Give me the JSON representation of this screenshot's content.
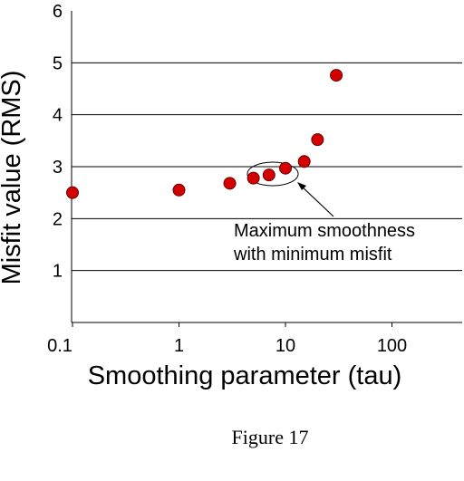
{
  "chart_data": {
    "type": "scatter",
    "x_scale": "log",
    "xlabel": "Smoothing parameter (tau)",
    "ylabel": "Misfit value (RMS)",
    "xlim": [
      0.08,
      500
    ],
    "ylim": [
      0,
      6
    ],
    "x_ticks": [
      "0.1",
      "1",
      "10",
      "100"
    ],
    "y_ticks": [
      "1",
      "2",
      "3",
      "4",
      "5",
      "6"
    ],
    "grid": "horizontal",
    "marker_color": "#d40000",
    "points": [
      {
        "x": 0.1,
        "y": 2.5
      },
      {
        "x": 1,
        "y": 2.55
      },
      {
        "x": 3,
        "y": 2.68
      },
      {
        "x": 5,
        "y": 2.78
      },
      {
        "x": 7,
        "y": 2.84
      },
      {
        "x": 10,
        "y": 2.97
      },
      {
        "x": 15,
        "y": 3.1
      },
      {
        "x": 20,
        "y": 3.52
      },
      {
        "x": 30,
        "y": 4.76
      }
    ],
    "annotation": {
      "lines": [
        "Maximum smoothness",
        "with minimum misfit"
      ],
      "target_x": 7,
      "target_y": 2.84
    }
  },
  "caption": "Figure 17"
}
